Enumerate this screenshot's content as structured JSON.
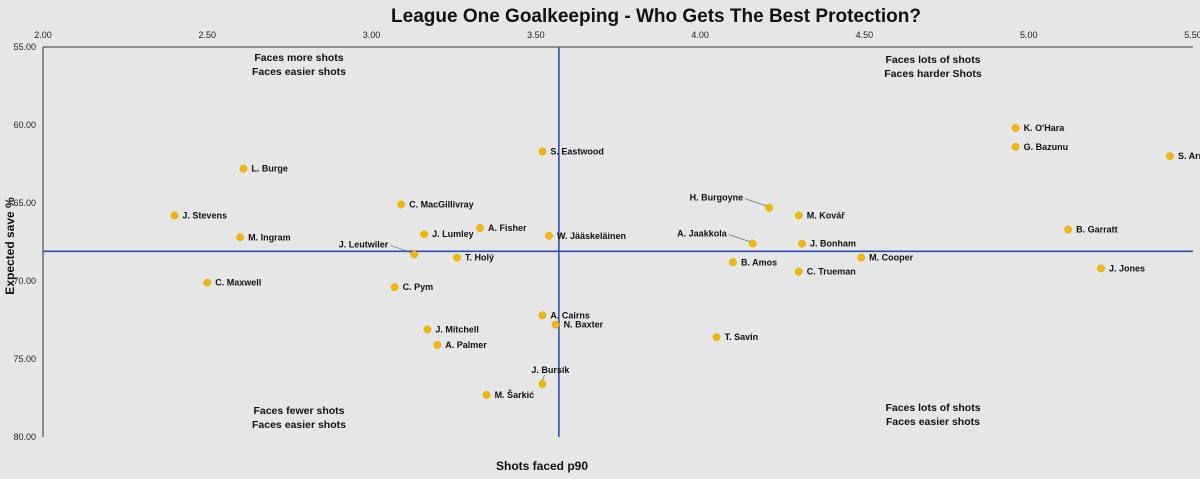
{
  "chart_data": {
    "type": "scatter",
    "title": "League One Goalkeeping - Who Gets The Best Protection?",
    "xlabel": "Shots faced p90",
    "ylabel": "Expected save %",
    "xlim": [
      2.0,
      5.5
    ],
    "ylim": [
      55.0,
      80.0
    ],
    "y_reversed": true,
    "x_ticks": [
      "2.00",
      "2.50",
      "3.00",
      "3.50",
      "4.00",
      "4.50",
      "5.00",
      "5.50"
    ],
    "y_ticks": [
      "55.00",
      "60.00",
      "65.00",
      "70.00",
      "75.00",
      "80.00"
    ],
    "reference_lines": {
      "x": 3.57,
      "y": 68.1
    },
    "point_color": "#f5b800",
    "line_color": "#2f4fb0",
    "quadrant_labels": [
      {
        "lines": [
          "Faces more shots",
          "Faces easier shots"
        ],
        "pos": "top-left"
      },
      {
        "lines": [
          "Faces lots of shots",
          "Faces harder Shots"
        ],
        "pos": "top-right"
      },
      {
        "lines": [
          "Faces fewer shots",
          "Faces easier shots"
        ],
        "pos": "bottom-left"
      },
      {
        "lines": [
          "Faces lots of shots",
          "Faces easier shots"
        ],
        "pos": "bottom-right"
      }
    ],
    "points": [
      {
        "name": "K. O'Hara",
        "x": 4.96,
        "y": 60.2
      },
      {
        "name": "G. Bazunu",
        "x": 4.96,
        "y": 61.4
      },
      {
        "name": "S. Arnold",
        "x": 5.43,
        "y": 62.0
      },
      {
        "name": "S. Eastwood",
        "x": 3.52,
        "y": 61.7
      },
      {
        "name": "L. Burge",
        "x": 2.61,
        "y": 62.8
      },
      {
        "name": "J. Stevens",
        "x": 2.4,
        "y": 65.8
      },
      {
        "name": "C. MacGillivray",
        "x": 3.09,
        "y": 65.1
      },
      {
        "name": "A. Fisher",
        "x": 3.33,
        "y": 66.6
      },
      {
        "name": "J. Lumley",
        "x": 3.16,
        "y": 67.0
      },
      {
        "name": "W. Jääskeläinen",
        "x": 3.54,
        "y": 67.1
      },
      {
        "name": "M. Ingram",
        "x": 2.6,
        "y": 67.2
      },
      {
        "name": "H. Burgoyne",
        "x": 4.21,
        "y": 65.3
      },
      {
        "name": "M. Kovář",
        "x": 4.3,
        "y": 65.8
      },
      {
        "name": "A. Jaakkola",
        "x": 4.16,
        "y": 67.6
      },
      {
        "name": "J. Bonham",
        "x": 4.31,
        "y": 67.6
      },
      {
        "name": "B. Garratt",
        "x": 5.12,
        "y": 66.7
      },
      {
        "name": "J. Leutwiler",
        "x": 3.13,
        "y": 68.3
      },
      {
        "name": "T. Holý",
        "x": 3.26,
        "y": 68.5
      },
      {
        "name": "M. Cooper",
        "x": 4.49,
        "y": 68.5
      },
      {
        "name": "B. Amos",
        "x": 4.1,
        "y": 68.8
      },
      {
        "name": "C. Trueman",
        "x": 4.3,
        "y": 69.4
      },
      {
        "name": "J. Jones",
        "x": 5.22,
        "y": 69.2
      },
      {
        "name": "C. Maxwell",
        "x": 2.5,
        "y": 70.1
      },
      {
        "name": "C. Pym",
        "x": 3.07,
        "y": 70.4
      },
      {
        "name": "A. Cairns",
        "x": 3.52,
        "y": 72.2
      },
      {
        "name": "N. Baxter",
        "x": 3.56,
        "y": 72.8
      },
      {
        "name": "J. Mitchell",
        "x": 3.17,
        "y": 73.1
      },
      {
        "name": "A. Palmer",
        "x": 3.2,
        "y": 74.1
      },
      {
        "name": "T. Savin",
        "x": 4.05,
        "y": 73.6
      },
      {
        "name": "J. Bursík",
        "x": 3.52,
        "y": 76.6
      },
      {
        "name": "M. Šarkić",
        "x": 3.35,
        "y": 77.3
      }
    ]
  }
}
